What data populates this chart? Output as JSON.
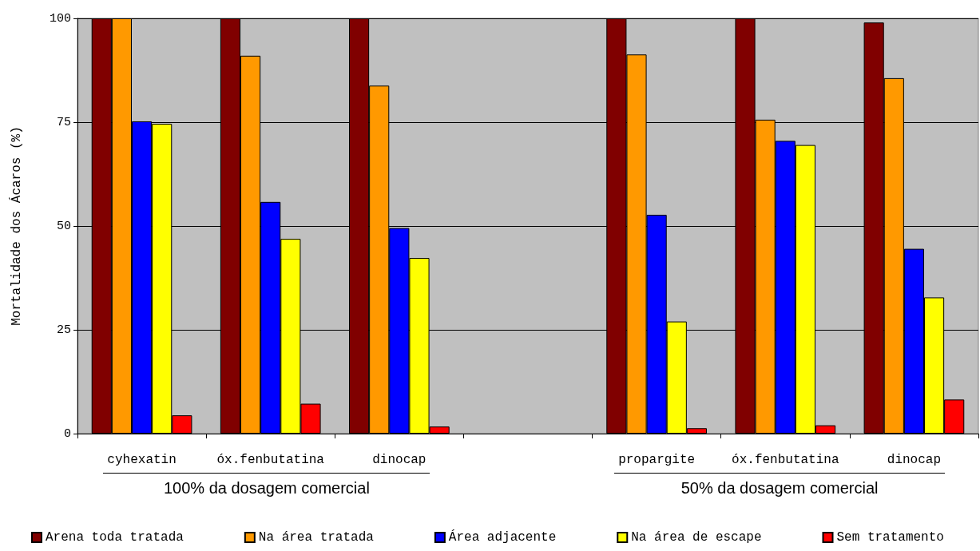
{
  "chart_data": {
    "type": "bar",
    "ylabel": "Mortalidade dos Ácaros (%)",
    "categories": [
      "cyhexatin",
      "óx.fenbutatina",
      "dinocap",
      null,
      "propargite",
      "óx.fenbutatina",
      "dinocap"
    ],
    "series": [
      {
        "name": "Arena toda tratada",
        "color": "#800000",
        "values": [
          100,
          100,
          100,
          null,
          100,
          100,
          99.0
        ]
      },
      {
        "name": "Na área tratada",
        "color": "#ff9900",
        "values": [
          100,
          91.0,
          83.8,
          null,
          91.3,
          75.6,
          85.6
        ]
      },
      {
        "name": "Área adjacente",
        "color": "#0000ff",
        "values": [
          75.2,
          55.8,
          49.5,
          null,
          52.7,
          70.5,
          44.5
        ]
      },
      {
        "name": "Na área de escape",
        "color": "#ffff00",
        "values": [
          74.6,
          46.9,
          42.3,
          null,
          27.0,
          69.5,
          32.8
        ]
      },
      {
        "name": "Sem tratamento",
        "color": "#ff0000",
        "values": [
          4.4,
          7.2,
          1.7,
          null,
          1.3,
          2.0,
          8.2
        ]
      }
    ],
    "ylim": [
      0,
      100
    ],
    "yticks": [
      0,
      25,
      50,
      75,
      100
    ],
    "grid": "y",
    "legend": "bottom",
    "annotations": [
      "100% da dosagem comercial",
      "50% da dosagem comercial"
    ]
  }
}
